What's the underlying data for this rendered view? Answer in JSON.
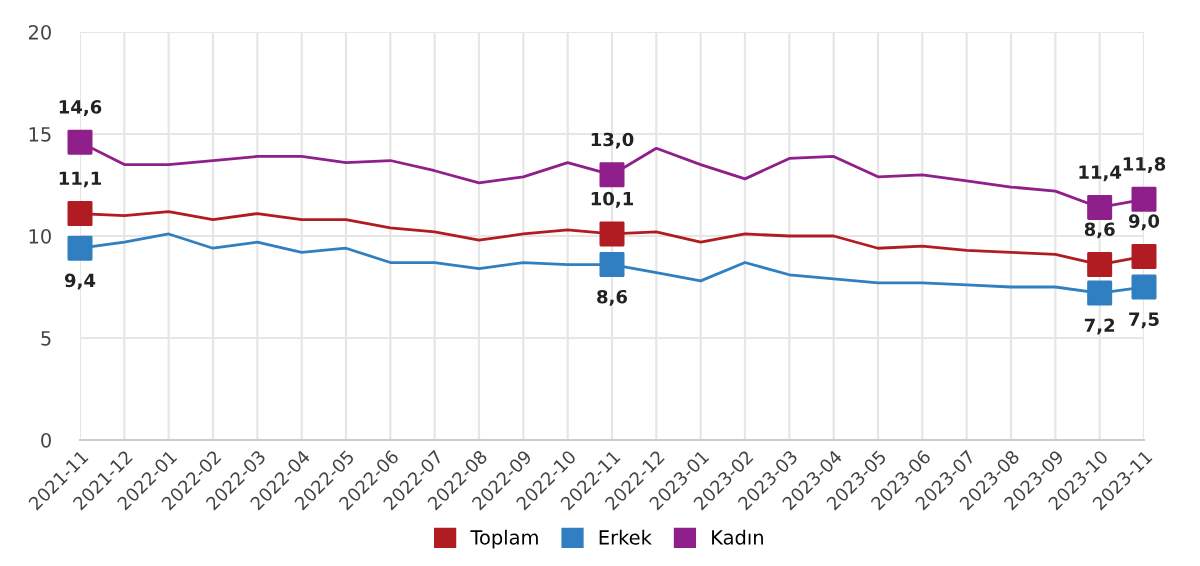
{
  "chart_data": {
    "type": "line",
    "categories": [
      "2021-11",
      "2021-12",
      "2022-01",
      "2022-02",
      "2022-03",
      "2022-04",
      "2022-05",
      "2022-06",
      "2022-07",
      "2022-08",
      "2022-09",
      "2022-10",
      "2022-11",
      "2022-12",
      "2023-01",
      "2023-02",
      "2023-03",
      "2023-04",
      "2023-05",
      "2023-06",
      "2023-07",
      "2023-08",
      "2023-09",
      "2023-10",
      "2023-11"
    ],
    "series": [
      {
        "name": "Toplam",
        "color": "#b01c22",
        "values": [
          11.1,
          11.0,
          11.2,
          10.8,
          11.1,
          10.8,
          10.8,
          10.4,
          10.2,
          9.8,
          10.1,
          10.3,
          10.1,
          10.2,
          9.7,
          10.1,
          10.0,
          10.0,
          9.4,
          9.5,
          9.3,
          9.2,
          9.1,
          8.6,
          9.0
        ]
      },
      {
        "name": "Erkek",
        "color": "#2f7fc1",
        "values": [
          9.4,
          9.7,
          10.1,
          9.4,
          9.7,
          9.2,
          9.4,
          8.7,
          8.7,
          8.4,
          8.7,
          8.6,
          8.6,
          8.2,
          7.8,
          8.7,
          8.1,
          7.9,
          7.7,
          7.7,
          7.6,
          7.5,
          7.5,
          7.2,
          7.5
        ]
      },
      {
        "name": "Kadın",
        "color": "#8f1f8a",
        "values": [
          14.6,
          13.5,
          13.5,
          13.7,
          13.9,
          13.9,
          13.6,
          13.7,
          13.2,
          12.6,
          12.9,
          13.6,
          13.0,
          14.3,
          13.5,
          12.8,
          13.8,
          13.9,
          12.9,
          13.0,
          12.7,
          12.4,
          12.2,
          11.4,
          11.8
        ]
      },
      {
        "type": "scatter",
        "marker": "square",
        "color": "#b01c22",
        "values": [
          11.1,
          null,
          null,
          null,
          null,
          null,
          null,
          null,
          null,
          null,
          null,
          null,
          10.1,
          null,
          null,
          null,
          null,
          null,
          null,
          null,
          null,
          null,
          null,
          8.6,
          9.0
        ],
        "value_labels": [
          "11,1",
          null,
          null,
          null,
          null,
          null,
          null,
          null,
          null,
          null,
          null,
          null,
          "10,1",
          null,
          null,
          null,
          null,
          null,
          null,
          null,
          null,
          null,
          null,
          "8,6",
          "9,0"
        ]
      },
      {
        "type": "scatter",
        "marker": "square",
        "color": "#2f7fc1",
        "values": [
          9.4,
          null,
          null,
          null,
          null,
          null,
          null,
          null,
          null,
          null,
          null,
          null,
          8.6,
          null,
          null,
          null,
          null,
          null,
          null,
          null,
          null,
          null,
          null,
          7.2,
          7.5
        ],
        "value_labels": [
          "9,4",
          null,
          null,
          null,
          null,
          null,
          null,
          null,
          null,
          null,
          null,
          null,
          "8,6",
          null,
          null,
          null,
          null,
          null,
          null,
          null,
          null,
          null,
          null,
          "7,2",
          "7,5"
        ]
      },
      {
        "type": "scatter",
        "marker": "square",
        "color": "#8f1f8a",
        "values": [
          14.6,
          null,
          null,
          null,
          null,
          null,
          null,
          null,
          null,
          null,
          null,
          null,
          13.0,
          null,
          null,
          null,
          null,
          null,
          null,
          null,
          null,
          null,
          null,
          11.4,
          11.8
        ],
        "value_labels": [
          "14,6",
          null,
          null,
          null,
          null,
          null,
          null,
          null,
          null,
          null,
          null,
          null,
          "13,0",
          null,
          null,
          null,
          null,
          null,
          null,
          null,
          null,
          null,
          null,
          "11,4",
          "11,8"
        ]
      }
    ],
    "ylim": [
      0,
      20
    ],
    "yticks": [
      0,
      5,
      10,
      15,
      20
    ],
    "grid": true,
    "legend": "bottom",
    "line_style": "solid"
  }
}
